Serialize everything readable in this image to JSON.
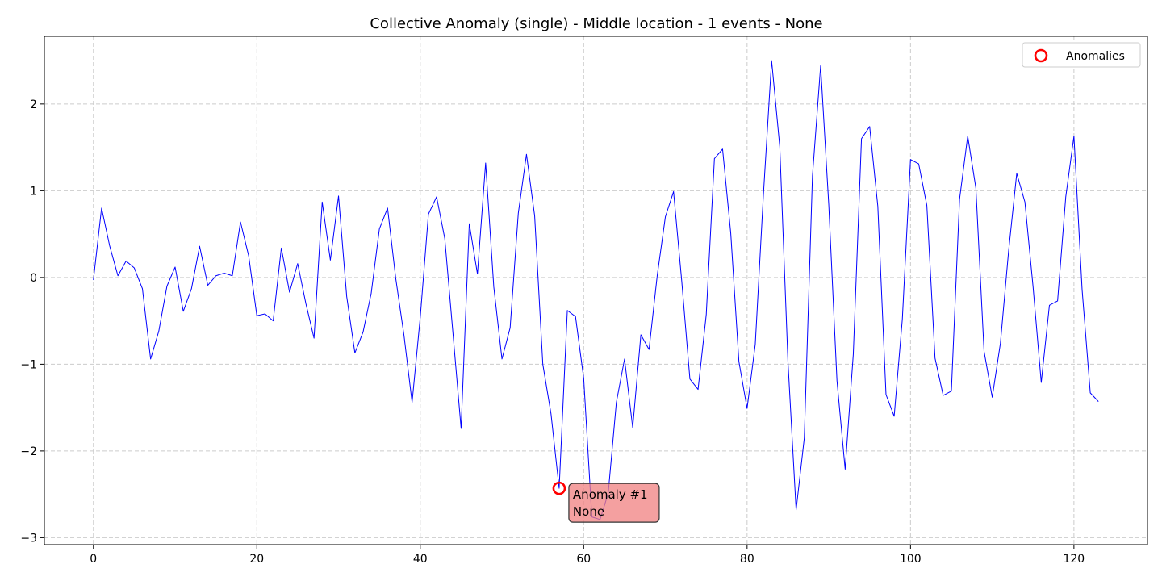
{
  "chart_data": {
    "type": "line",
    "title": "Collective Anomaly (single) - Middle location - 1 events - None",
    "xlabel": "",
    "ylabel": "",
    "xlim": [
      -6,
      129
    ],
    "ylim": [
      -3.08,
      2.78
    ],
    "xticks": [
      0,
      20,
      40,
      60,
      80,
      100,
      120
    ],
    "yticks": [
      -3,
      -2,
      -1,
      0,
      1,
      2
    ],
    "ytick_labels": [
      "−3",
      "−2",
      "−1",
      "0",
      "1",
      "2"
    ],
    "grid": true,
    "legend_position": "top-right",
    "series": [
      {
        "color": "#0000ff",
        "x_start": 0,
        "values": [
          -0.03,
          0.8,
          0.36,
          0.02,
          0.19,
          0.11,
          -0.13,
          -0.94,
          -0.62,
          -0.1,
          0.12,
          -0.39,
          -0.13,
          0.36,
          -0.09,
          0.02,
          0.05,
          0.02,
          0.64,
          0.25,
          -0.44,
          -0.42,
          -0.5,
          0.34,
          -0.17,
          0.16,
          -0.3,
          -0.7,
          0.87,
          0.2,
          0.94,
          -0.22,
          -0.87,
          -0.63,
          -0.18,
          0.56,
          0.8,
          -0.01,
          -0.66,
          -1.44,
          -0.46,
          0.73,
          0.93,
          0.45,
          -0.64,
          -1.74,
          0.62,
          0.04,
          1.32,
          -0.11,
          -0.94,
          -0.58,
          0.74,
          1.42,
          0.71,
          -1.0,
          -1.57,
          -2.43,
          -0.38,
          -0.45,
          -1.16,
          -2.76,
          -2.79,
          -2.49,
          -1.44,
          -0.94,
          -1.73,
          -0.66,
          -0.83,
          0.02,
          0.7,
          0.99,
          -0.04,
          -1.17,
          -1.29,
          -0.43,
          1.37,
          1.48,
          0.51,
          -0.97,
          -1.51,
          -0.77,
          0.96,
          2.5,
          1.51,
          -0.97,
          -2.68,
          -1.85,
          1.17,
          2.44,
          0.83,
          -1.19,
          -2.21,
          -0.88,
          1.6,
          1.74,
          0.82,
          -1.35,
          -1.6,
          -0.48,
          1.36,
          1.31,
          0.83,
          -0.93,
          -1.36,
          -1.31,
          0.9,
          1.63,
          1.03,
          -0.85,
          -1.38,
          -0.76,
          0.3,
          1.2,
          0.87,
          -0.11,
          -1.21,
          -0.32,
          -0.27,
          0.93,
          1.63,
          -0.14,
          -1.33,
          -1.43
        ]
      }
    ],
    "anomalies": {
      "name": "Anomalies",
      "color": "#ff0000",
      "points": [
        {
          "x": 57,
          "y": -2.43
        }
      ]
    },
    "annotations": [
      {
        "x": 57,
        "y": -2.43,
        "line1": "Anomaly #1",
        "line2": "None",
        "bg": "#f08080"
      }
    ]
  }
}
